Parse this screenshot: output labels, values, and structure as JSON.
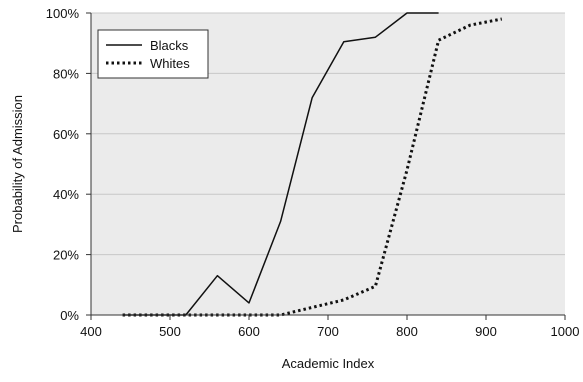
{
  "chart_data": {
    "type": "line",
    "title": "",
    "xlabel": "Academic Index",
    "ylabel": "Probability of Admission",
    "xlim": [
      400,
      1000
    ],
    "ylim": [
      0,
      100
    ],
    "x_ticks": [
      "400",
      "500",
      "600",
      "700",
      "800",
      "900",
      "1000"
    ],
    "y_ticks": [
      "0%",
      "20%",
      "40%",
      "60%",
      "80%",
      "100%"
    ],
    "legend_position": "top-left",
    "plot_background": "#ebebeb",
    "series": [
      {
        "name": "Blacks",
        "style": "solid",
        "color": "#111111",
        "points": [
          [
            440,
            0
          ],
          [
            520,
            0
          ],
          [
            560,
            13
          ],
          [
            600,
            4
          ],
          [
            640,
            31
          ],
          [
            680,
            72
          ],
          [
            720,
            90.5
          ],
          [
            760,
            92
          ],
          [
            800,
            100
          ],
          [
            840,
            100
          ]
        ]
      },
      {
        "name": "Whites",
        "style": "dotted",
        "color": "#111111",
        "points": [
          [
            440,
            0
          ],
          [
            640,
            0
          ],
          [
            680,
            2.5
          ],
          [
            720,
            5
          ],
          [
            760,
            9.5
          ],
          [
            800,
            48
          ],
          [
            840,
            91
          ],
          [
            880,
            96
          ],
          [
            920,
            98
          ]
        ]
      }
    ]
  }
}
